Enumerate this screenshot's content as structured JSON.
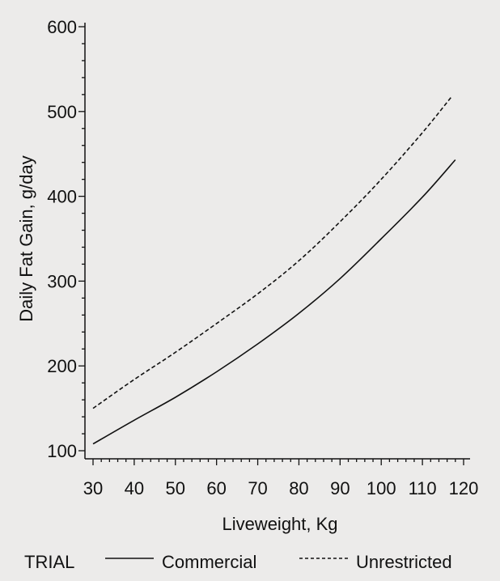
{
  "chart_data": {
    "type": "line",
    "title": "",
    "xlabel": "Liveweight,  Kg",
    "ylabel": "Daily  Fat  Gain,  g/day",
    "xlim": [
      30,
      120
    ],
    "ylim": [
      100,
      600
    ],
    "x_ticks": [
      30,
      40,
      50,
      60,
      70,
      80,
      90,
      100,
      110,
      120
    ],
    "y_ticks": [
      100,
      200,
      300,
      400,
      500,
      600
    ],
    "x_tick_labels": [
      "30",
      "40",
      "50",
      "60",
      "70",
      "80",
      "90",
      "100",
      "110",
      "120"
    ],
    "y_tick_labels": [
      "100",
      "200",
      "300",
      "400",
      "500",
      "600"
    ],
    "grid": false,
    "legend_position": "bottom",
    "legend_title": "TRIAL",
    "series": [
      {
        "name": "Commercial",
        "style": "solid",
        "color": "#111111",
        "x": [
          30,
          40,
          50,
          60,
          70,
          80,
          90,
          100,
          110,
          118
        ],
        "y": [
          108,
          136,
          163,
          193,
          226,
          262,
          303,
          350,
          399,
          443
        ]
      },
      {
        "name": "Unrestricted",
        "style": "dashed",
        "color": "#111111",
        "x": [
          30,
          40,
          50,
          60,
          70,
          80,
          90,
          100,
          110,
          117
        ],
        "y": [
          150,
          184,
          216,
          250,
          285,
          324,
          370,
          420,
          475,
          517
        ]
      }
    ]
  }
}
